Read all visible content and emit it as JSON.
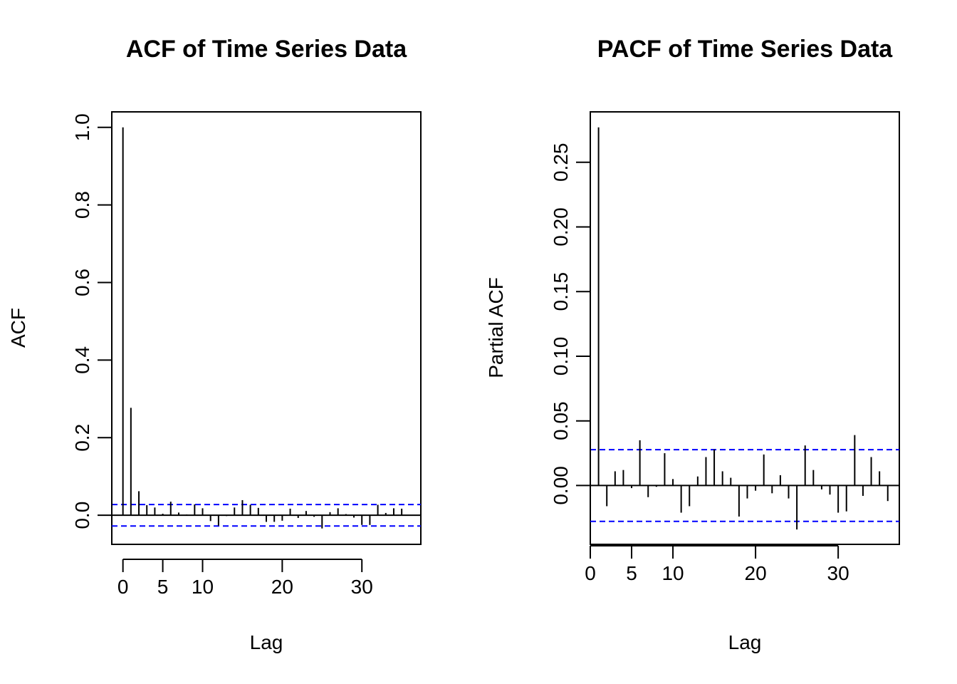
{
  "chart_data": [
    {
      "type": "bar",
      "title": "ACF of Time Series Data",
      "xlabel": "Lag",
      "ylabel": "ACF",
      "xlim": [
        -1.4,
        37.4
      ],
      "ylim": [
        -0.075,
        1.04
      ],
      "xticks": [
        0,
        5,
        10,
        20,
        30
      ],
      "yticks": [
        0.0,
        0.2,
        0.4,
        0.6,
        0.8,
        1.0
      ],
      "ytick_labels": [
        "0.0",
        "0.2",
        "0.4",
        "0.6",
        "0.8",
        "1.0"
      ],
      "zero_line": 0,
      "confidence_bounds": [
        0.0277,
        -0.0277
      ],
      "confidence_color": "#0000ff",
      "x": [
        0,
        1,
        2,
        3,
        4,
        5,
        6,
        7,
        8,
        9,
        10,
        11,
        12,
        13,
        14,
        15,
        16,
        17,
        18,
        19,
        20,
        21,
        22,
        23,
        24,
        25,
        26,
        27,
        28,
        29,
        30,
        31,
        32,
        33,
        34,
        35,
        36
      ],
      "values": [
        1.0,
        0.277,
        0.062,
        0.026,
        0.02,
        0.004,
        0.035,
        0.007,
        0.002,
        0.028,
        0.018,
        -0.015,
        -0.027,
        -0.002,
        0.02,
        0.039,
        0.027,
        0.019,
        -0.017,
        -0.017,
        -0.014,
        0.017,
        -0.007,
        0.011,
        -0.004,
        -0.034,
        0.008,
        0.018,
        0.003,
        -0.006,
        -0.025,
        -0.025,
        0.027,
        0.006,
        0.018,
        0.017,
        0.001
      ]
    },
    {
      "type": "bar",
      "title": "PACF of Time Series Data",
      "xlabel": "Lag",
      "ylabel": "Partial ACF",
      "xlim": [
        0,
        37.4
      ],
      "ylim": [
        -0.0455,
        0.289
      ],
      "xticks": [
        0,
        5,
        10,
        20,
        30
      ],
      "yticks": [
        0.0,
        0.05,
        0.1,
        0.15,
        0.2,
        0.25
      ],
      "ytick_labels": [
        "0.00",
        "0.05",
        "0.10",
        "0.15",
        "0.20",
        "0.25"
      ],
      "zero_line": 0,
      "confidence_bounds": [
        0.0277,
        -0.0277
      ],
      "confidence_color": "#0000ff",
      "x": [
        1,
        2,
        3,
        4,
        5,
        6,
        7,
        8,
        9,
        10,
        11,
        12,
        13,
        14,
        15,
        16,
        17,
        18,
        19,
        20,
        21,
        22,
        23,
        24,
        25,
        26,
        27,
        28,
        29,
        30,
        31,
        32,
        33,
        34,
        35,
        36
      ],
      "values": [
        0.277,
        -0.016,
        0.011,
        0.012,
        -0.002,
        0.035,
        -0.009,
        -0.001,
        0.025,
        0.005,
        -0.021,
        -0.016,
        0.007,
        0.022,
        0.028,
        0.011,
        0.006,
        -0.024,
        -0.01,
        -0.004,
        0.024,
        -0.006,
        0.008,
        -0.01,
        -0.034,
        0.031,
        0.012,
        -0.003,
        -0.007,
        -0.021,
        -0.02,
        0.039,
        -0.008,
        0.022,
        0.011,
        -0.012
      ]
    }
  ]
}
